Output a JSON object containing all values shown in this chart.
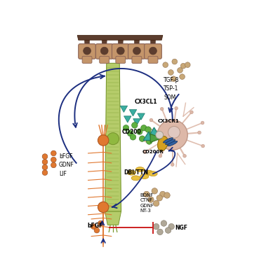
{
  "bg_color": "#ffffff",
  "labels": {
    "TGF": "TGF-β\nTSP-1\nSOM",
    "CX3CL1": "CX3CL1",
    "CD200": "CD200",
    "CX3CR1": "CX3CR1",
    "CD200R": "CD200R",
    "DBI": "DBI/TTN",
    "BDNF": "BDNF\nCTNF\nGDNF\nNT-3",
    "bFGF_left": "bFGF\nGDNF\nLIF",
    "bFGF_bottom": "bFGF",
    "NGF": "NGF"
  },
  "colors": {
    "brown_cell": "#8B6355",
    "brown_body": "#C4956A",
    "brown_dark": "#5C3D2E",
    "green_col": "#B5CC6A",
    "green_dark": "#7A9930",
    "green_nucleus": "#90B840",
    "orange": "#E07830",
    "orange_dark": "#B05820",
    "microglia_body": "#DDB8A8",
    "microglia_edge": "#C09888",
    "teal": "#3AADA0",
    "teal_dark": "#1A7A6A",
    "arrow_blue": "#1C2E80",
    "arrow_red": "#CC2020",
    "yellow": "#E8C040",
    "yellow_dark": "#C09010",
    "green_dot": "#60B040",
    "tan_dot": "#C8A878",
    "gray_dot": "#B0A898",
    "orange_dot": "#E07830",
    "receptor_gold": "#D4A020",
    "receptor_blue": "#3060A0"
  }
}
